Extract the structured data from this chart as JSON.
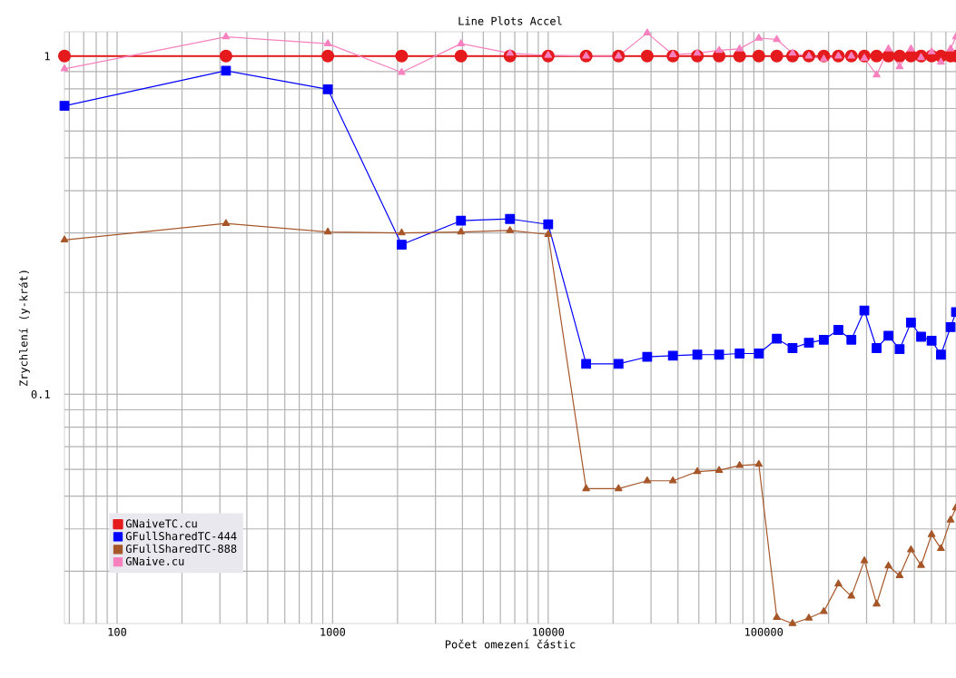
{
  "chart_data": {
    "type": "line",
    "title": "Line Plots Accel",
    "xlabel": "Počet omezení částic",
    "ylabel": "Zrychlení (y-krát)",
    "log": "xy",
    "grid": true,
    "legend": "bottom left",
    "xlim": [
      57,
      780000
    ],
    "ylim": [
      0.021,
      1.18
    ],
    "xticks": [
      100,
      1000,
      10000,
      100000
    ],
    "yticks": [
      0.1,
      1
    ],
    "x": [
      57,
      320,
      950,
      2090,
      3940,
      6650,
      10000,
      15000,
      21200,
      28800,
      37900,
      49200,
      62100,
      77300,
      94900,
      115000,
      136000,
      162000,
      190000,
      222000,
      255000,
      293000,
      334000,
      379000,
      427000,
      482000,
      537000,
      601000,
      664000,
      736000,
      780000
    ],
    "series": [
      {
        "name": "GNaiveTC.cu",
        "color": "#e41a1c",
        "marker": "circle",
        "values": [
          1,
          1,
          1,
          1,
          1,
          1,
          1,
          1,
          1,
          1,
          1,
          1,
          1,
          1,
          1,
          1,
          1,
          1,
          1,
          1,
          1,
          1,
          1,
          1,
          1,
          1,
          1,
          1,
          1,
          1,
          1
        ]
      },
      {
        "name": "GFullSharedTC-444",
        "color": "#0000ff",
        "marker": "square",
        "values": [
          0.713,
          0.905,
          0.798,
          0.277,
          0.326,
          0.33,
          0.318,
          0.123,
          0.123,
          0.129,
          0.13,
          0.131,
          0.131,
          0.132,
          0.132,
          0.146,
          0.137,
          0.142,
          0.145,
          0.155,
          0.145,
          0.177,
          0.137,
          0.149,
          0.136,
          0.163,
          0.148,
          0.144,
          0.131,
          0.158,
          0.175
        ]
      },
      {
        "name": "GFullSharedTC-888",
        "color": "#a65628",
        "marker": "triangle",
        "values": [
          0.286,
          0.32,
          0.302,
          0.3,
          0.302,
          0.305,
          0.297,
          0.0526,
          0.0526,
          0.0555,
          0.0555,
          0.0591,
          0.0596,
          0.0616,
          0.0621,
          0.0219,
          0.021,
          0.0218,
          0.0228,
          0.0275,
          0.0253,
          0.0322,
          0.024,
          0.0311,
          0.0291,
          0.0347,
          0.0312,
          0.0385,
          0.035,
          0.0425,
          0.0462
        ]
      },
      {
        "name": "GNaive.cu",
        "color": "#f781bf",
        "marker": "triangle",
        "values": [
          0.917,
          1.14,
          1.088,
          0.895,
          1.088,
          1.02,
          1.005,
          1.0,
          1.0,
          1.17,
          1.01,
          1.02,
          1.04,
          1.05,
          1.13,
          1.12,
          1.02,
          1.0,
          0.98,
          1.0,
          1.0,
          0.985,
          0.88,
          1.05,
          0.93,
          1.05,
          0.99,
          1.03,
          0.96,
          1.05,
          1.14
        ]
      }
    ]
  }
}
